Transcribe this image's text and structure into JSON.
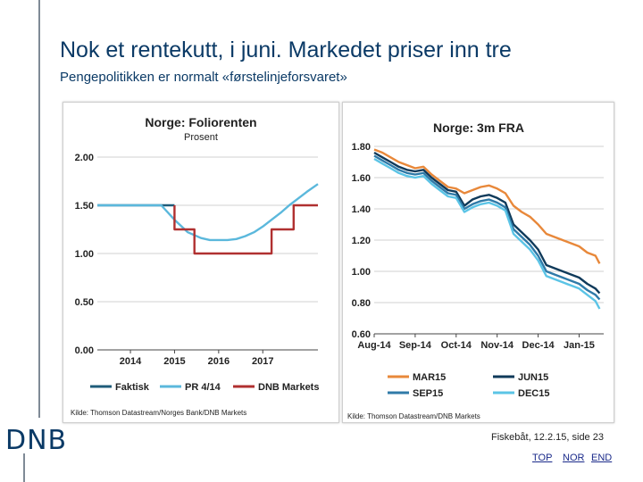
{
  "slide": {
    "title": "Nok et rentekutt, i juni. Markedet priser inn tre",
    "subtitle": "Pengepolitikken er normalt «førstelinjeforsvaret»",
    "logo": "DNB",
    "footer": "Fiskebåt, 12.2.15, side 23",
    "nav": {
      "top": "TOP",
      "nor": "NOR",
      "end": "END"
    }
  },
  "chart_data": [
    {
      "type": "line",
      "title": "Norge: Foliorenten",
      "subtitle": "Prosent",
      "source": "Kilde: Thomson Datastream/Norges Bank/DNB Markets",
      "ylim": [
        0,
        2.0
      ],
      "yticks": [
        "0.00",
        "0.50",
        "1.00",
        "1.50",
        "2.00"
      ],
      "xlim": [
        2013.25,
        2018.25
      ],
      "xticks": [
        "2014",
        "2015",
        "2016",
        "2017"
      ],
      "legend_position": "bottom",
      "series": [
        {
          "name": "Faktisk",
          "color": "#1f5c7a",
          "x": [
            2013.25,
            2015.0
          ],
          "y": [
            1.5,
            1.5
          ]
        },
        {
          "name": "PR 4/14",
          "color": "#5bb8dc",
          "x": [
            2013.25,
            2014.7,
            2015.0,
            2015.3,
            2015.6,
            2015.8,
            2016.0,
            2016.2,
            2016.4,
            2016.6,
            2016.8,
            2017.0,
            2017.2,
            2017.4,
            2017.6,
            2017.8,
            2018.0,
            2018.25
          ],
          "y": [
            1.5,
            1.5,
            1.35,
            1.22,
            1.16,
            1.14,
            1.14,
            1.14,
            1.15,
            1.18,
            1.22,
            1.28,
            1.35,
            1.42,
            1.5,
            1.57,
            1.64,
            1.72
          ]
        },
        {
          "name": "DNB Markets",
          "color": "#b03030",
          "x": [
            2015.0,
            2015.0,
            2015.45,
            2015.45,
            2017.2,
            2017.2,
            2017.7,
            2017.7,
            2018.25
          ],
          "y": [
            1.5,
            1.25,
            1.25,
            1.0,
            1.0,
            1.25,
            1.25,
            1.5,
            1.5
          ]
        }
      ]
    },
    {
      "type": "line",
      "title": "Norge: 3m FRA",
      "source": "Kilde: Thomson Datastream/DNB Markets",
      "ylim": [
        0.6,
        1.8
      ],
      "yticks": [
        "0.60",
        "0.80",
        "1.00",
        "1.20",
        "1.40",
        "1.60",
        "1.80"
      ],
      "xticks": [
        "Aug-14",
        "Sep-14",
        "Oct-14",
        "Nov-14",
        "Dec-14",
        "Jan-15"
      ],
      "xlim": [
        0,
        5.6
      ],
      "legend_position": "bottom",
      "series": [
        {
          "name": "MAR15",
          "color": "#e8883a",
          "x": [
            0,
            0.2,
            0.4,
            0.6,
            0.8,
            1.0,
            1.2,
            1.4,
            1.6,
            1.8,
            2.0,
            2.2,
            2.4,
            2.6,
            2.8,
            3.0,
            3.2,
            3.4,
            3.6,
            3.8,
            4.0,
            4.2,
            4.4,
            4.6,
            4.8,
            5.0,
            5.2,
            5.4,
            5.5
          ],
          "y": [
            1.78,
            1.76,
            1.73,
            1.7,
            1.68,
            1.66,
            1.67,
            1.62,
            1.58,
            1.54,
            1.53,
            1.5,
            1.52,
            1.54,
            1.55,
            1.53,
            1.5,
            1.42,
            1.38,
            1.35,
            1.3,
            1.24,
            1.22,
            1.2,
            1.18,
            1.16,
            1.12,
            1.1,
            1.05
          ]
        },
        {
          "name": "JUN15",
          "color": "#0f3a5a",
          "x": [
            0,
            0.2,
            0.4,
            0.6,
            0.8,
            1.0,
            1.2,
            1.4,
            1.6,
            1.8,
            2.0,
            2.2,
            2.4,
            2.6,
            2.8,
            3.0,
            3.2,
            3.4,
            3.6,
            3.8,
            4.0,
            4.2,
            4.4,
            4.6,
            4.8,
            5.0,
            5.2,
            5.4,
            5.5
          ],
          "y": [
            1.76,
            1.73,
            1.7,
            1.67,
            1.65,
            1.64,
            1.65,
            1.6,
            1.56,
            1.52,
            1.51,
            1.42,
            1.46,
            1.48,
            1.49,
            1.47,
            1.44,
            1.3,
            1.25,
            1.2,
            1.14,
            1.04,
            1.02,
            1.0,
            0.98,
            0.96,
            0.92,
            0.89,
            0.86
          ]
        },
        {
          "name": "SEP15",
          "color": "#2f7aa8",
          "x": [
            0,
            0.2,
            0.4,
            0.6,
            0.8,
            1.0,
            1.2,
            1.4,
            1.6,
            1.8,
            2.0,
            2.2,
            2.4,
            2.6,
            2.8,
            3.0,
            3.2,
            3.4,
            3.6,
            3.8,
            4.0,
            4.2,
            4.4,
            4.6,
            4.8,
            5.0,
            5.2,
            5.4,
            5.5
          ],
          "y": [
            1.74,
            1.71,
            1.68,
            1.65,
            1.63,
            1.62,
            1.63,
            1.58,
            1.54,
            1.5,
            1.49,
            1.4,
            1.43,
            1.45,
            1.46,
            1.44,
            1.41,
            1.27,
            1.22,
            1.17,
            1.1,
            1.0,
            0.98,
            0.96,
            0.94,
            0.92,
            0.88,
            0.85,
            0.82
          ]
        },
        {
          "name": "DEC15",
          "color": "#5bc4e6",
          "x": [
            0,
            0.2,
            0.4,
            0.6,
            0.8,
            1.0,
            1.2,
            1.4,
            1.6,
            1.8,
            2.0,
            2.2,
            2.4,
            2.6,
            2.8,
            3.0,
            3.2,
            3.4,
            3.6,
            3.8,
            4.0,
            4.2,
            4.4,
            4.6,
            4.8,
            5.0,
            5.2,
            5.4,
            5.5
          ],
          "y": [
            1.72,
            1.69,
            1.66,
            1.63,
            1.61,
            1.6,
            1.61,
            1.56,
            1.52,
            1.48,
            1.47,
            1.38,
            1.41,
            1.43,
            1.44,
            1.42,
            1.39,
            1.24,
            1.19,
            1.14,
            1.07,
            0.97,
            0.95,
            0.93,
            0.91,
            0.89,
            0.85,
            0.81,
            0.76
          ]
        }
      ]
    }
  ]
}
